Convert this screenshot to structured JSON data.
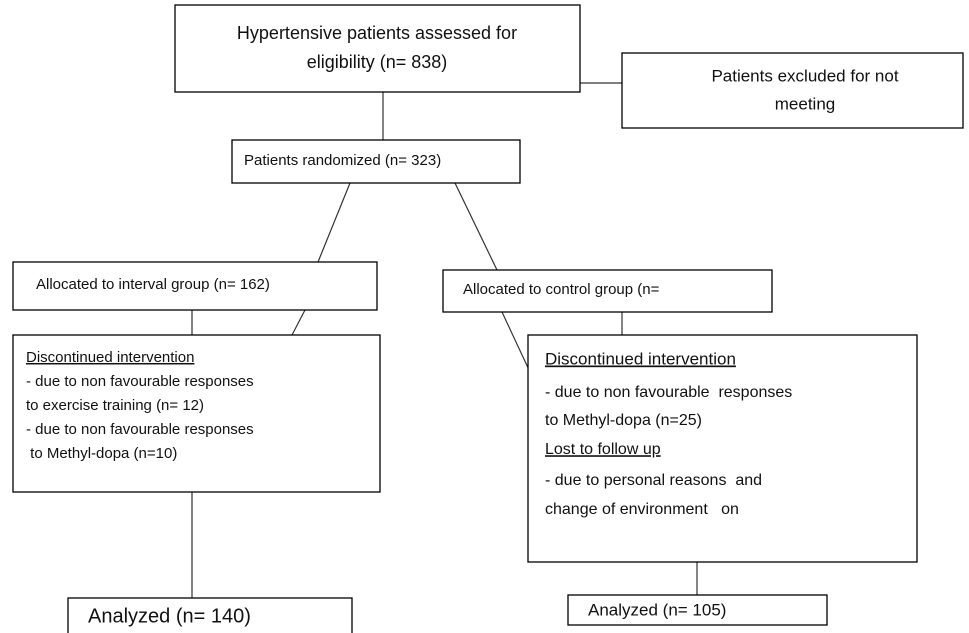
{
  "nodes": [
    {
      "lines": [
        "Hypertensive patients assessed for",
        "eligibility (n= 838)"
      ]
    },
    {
      "lines": [
        "Patients excluded for not",
        "meeting"
      ]
    },
    {
      "lines": [
        "Patients randomized (n= 323)"
      ]
    },
    {
      "lines": [
        "Allocated to interval group (n= 162)"
      ]
    },
    {
      "lines": [
        "Allocated to control group (n="
      ]
    },
    {
      "sections": [
        {
          "heading": "Discontinued intervention",
          "lines": [
            "- due to non favourable responses",
            "to exercise training (n= 12)",
            "- due to non favourable responses",
            " to Methyl-dopa (n=10)"
          ]
        }
      ]
    },
    {
      "sections": [
        {
          "heading": "Discontinued intervention",
          "lines": [
            "- due to non favourable  responses",
            "to Methyl-dopa (n=25)"
          ]
        },
        {
          "heading": "Lost to follow up",
          "lines": [
            "- due to personal reasons  and",
            "change of environment   on"
          ]
        }
      ]
    },
    {
      "lines": [
        "Analyzed (n= 140)"
      ]
    },
    {
      "lines": [
        "Analyzed (n= 105)"
      ]
    }
  ]
}
